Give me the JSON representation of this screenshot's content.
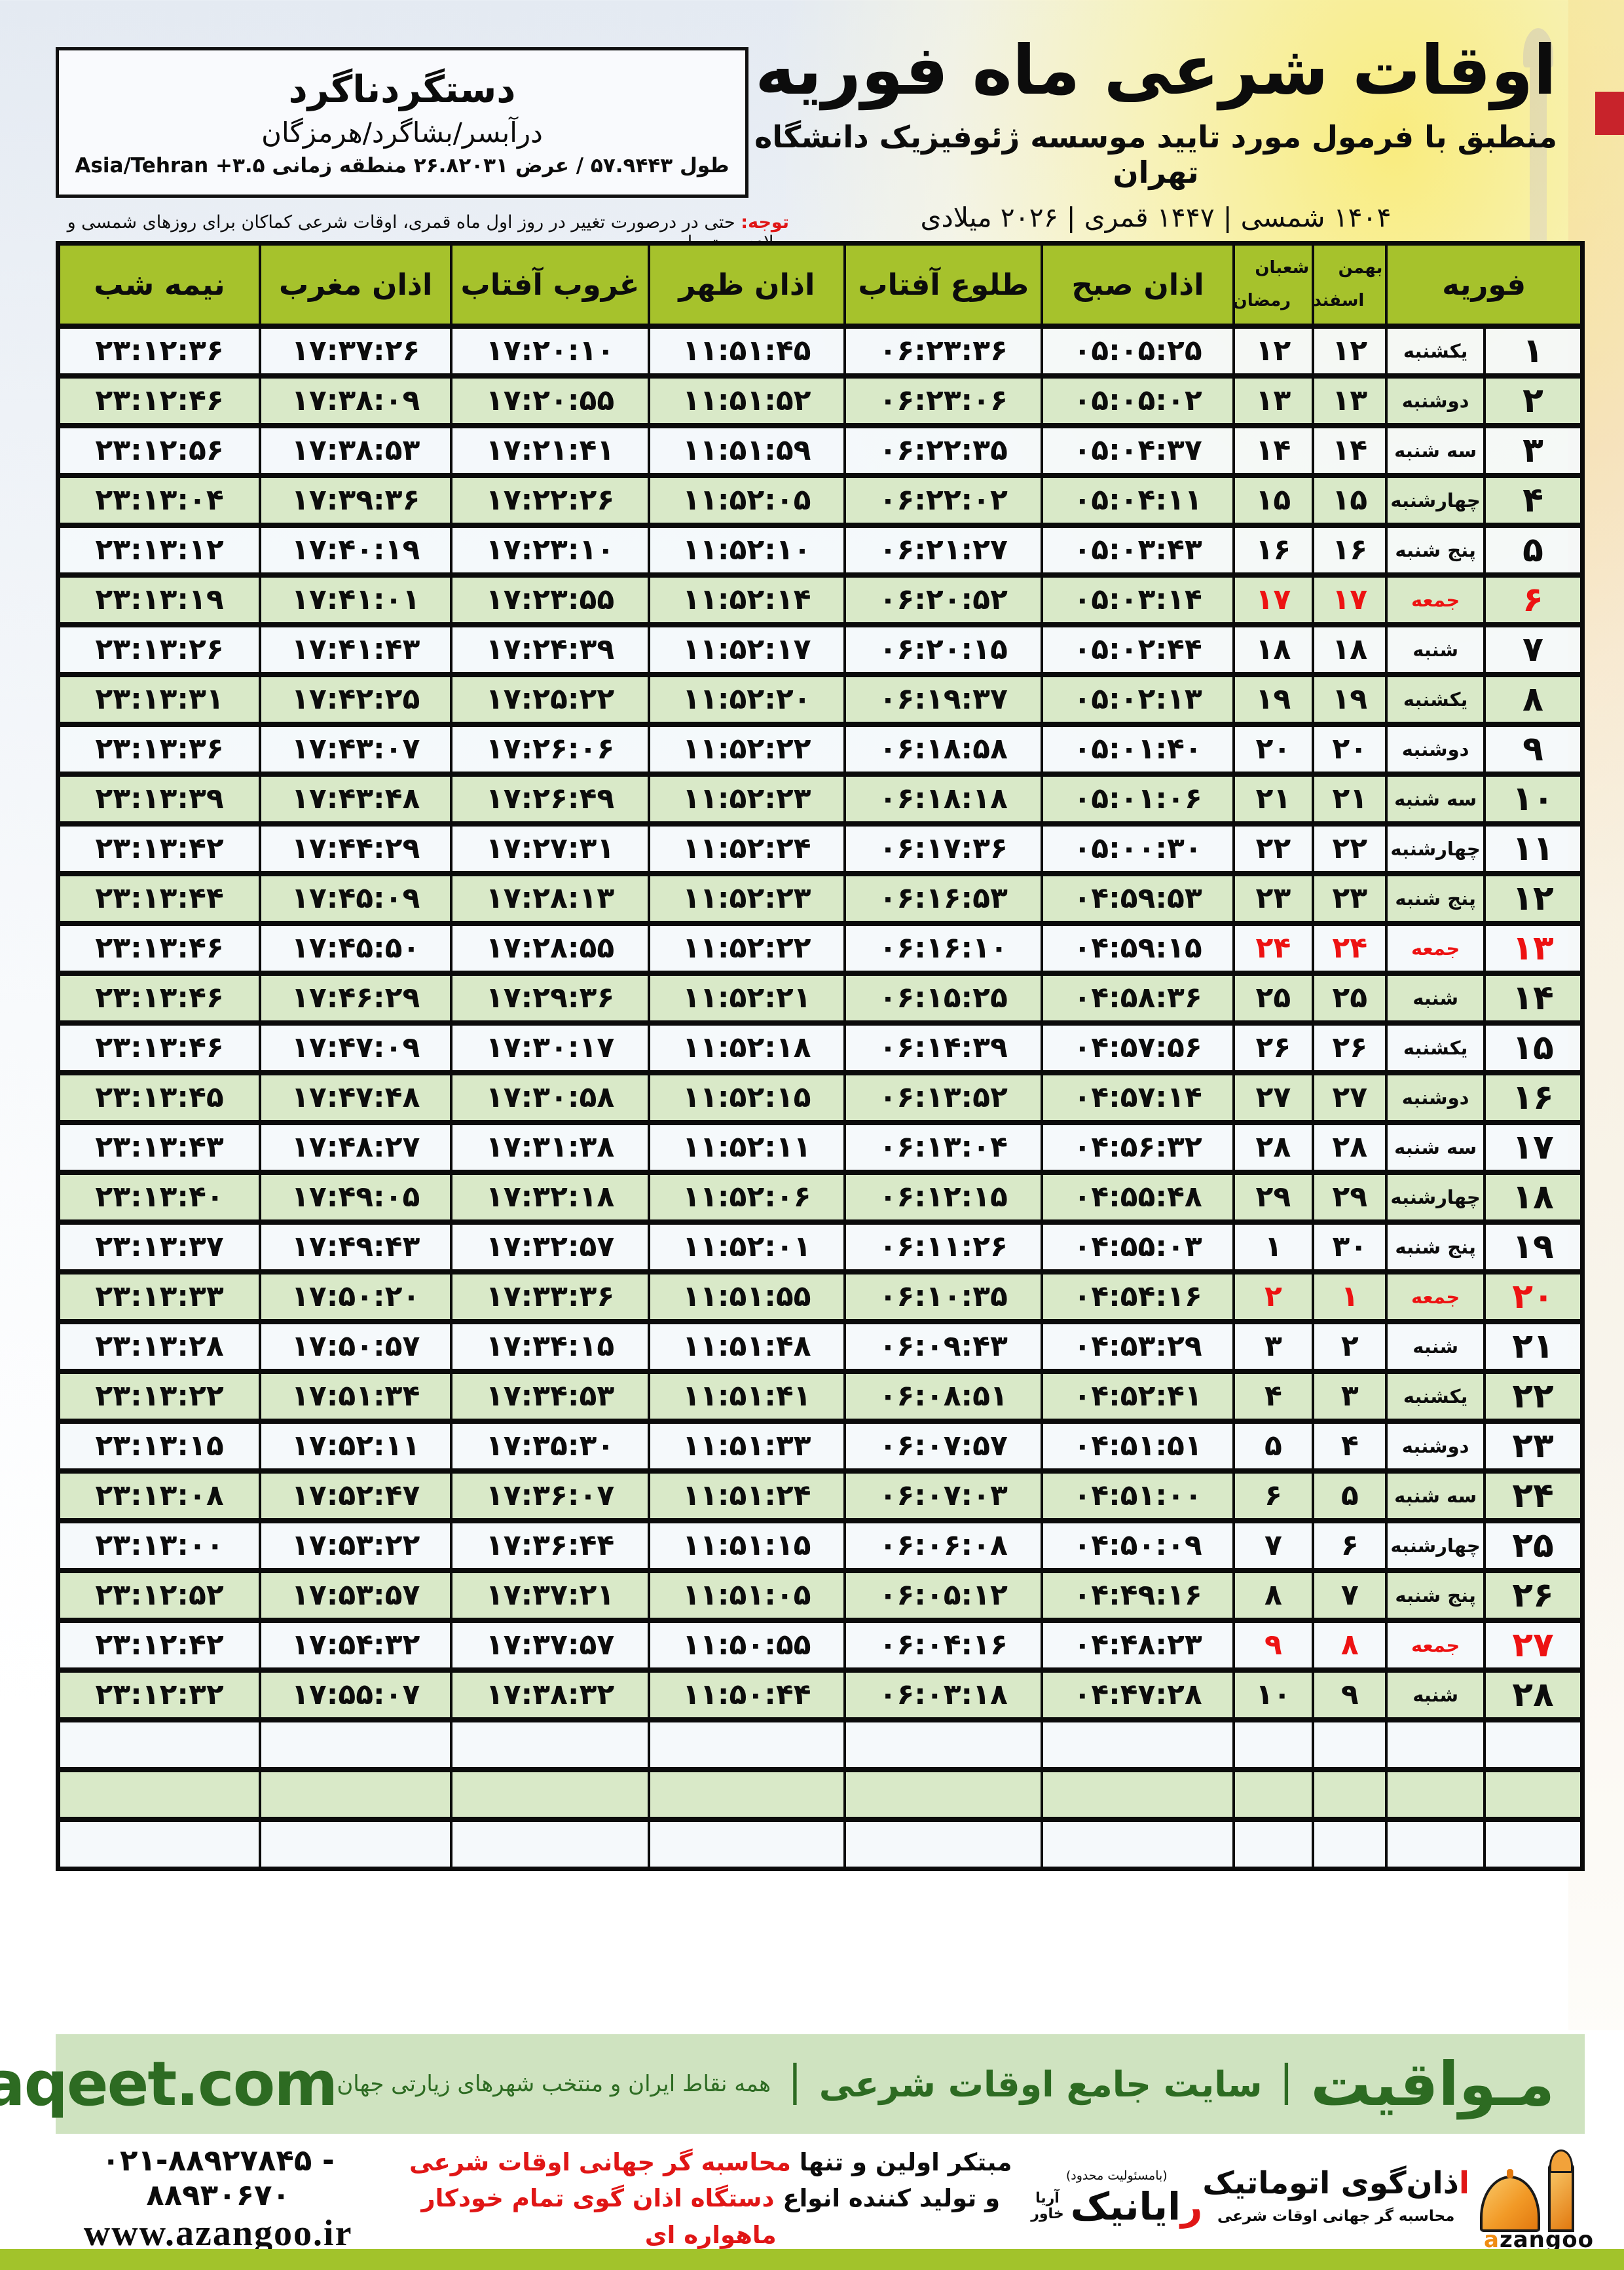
{
  "colors": {
    "header_green": "#a6c22c",
    "row_green": "#d9e9c8",
    "friday_red": "#ed1212",
    "note_red": "#e01616",
    "band_bg": "#cfe3c0",
    "band_text_green": "#2d6b22",
    "bottom_bar_green": "#a2c32b",
    "azangoo_orange": "#ef8c13",
    "red_chip": "#c8232b"
  },
  "header": {
    "title": "اوقات شرعی ماه فوریه",
    "subtitle": "منطبق با فرمول مورد تایید موسسه ژئوفیزیک دانشگاه تهران",
    "dateline": "۱۴۰۴ شمسی | ۱۴۴۷ قمری | ۲۰۲۶ میلادی"
  },
  "location": {
    "name": "دستگردناگرد",
    "region": "درآبسر/بشاگرد/هرمزگان",
    "coords": "طول ۵۷.۹۴۴۳ / عرض ۲۶.۸۲۰۳۱ منطقه زمانی ۳.۵+ Asia/Tehran"
  },
  "note": {
    "label": "توجه:",
    "text": " حتی در درصورت تغییر در روز اول ماه قمری، اوقات شرعی کماکان برای روزهای شمسی و میلادی معتبر است."
  },
  "table": {
    "headers": {
      "february": "فوریه",
      "bahman": "بهمن",
      "esfand": "اسفند",
      "shaban": "شعبان",
      "ramadan": "رمضان",
      "sobh": "اذان صبح",
      "tolu": "طلوع آفتاب",
      "zohr": "اذان ظهر",
      "ghorub": "غروب آفتاب",
      "maghreb": "اذان مغرب",
      "nimeshab": "نیمه شب"
    },
    "column_order": [
      "day",
      "weekday",
      "esfand",
      "ramadan",
      "sobh",
      "tolu",
      "zohr",
      "ghorub",
      "maghreb",
      "nimeshab"
    ],
    "empty_rows": 3,
    "rows": [
      {
        "day": "۱",
        "weekday": "یکشنبه",
        "esfand": "۱۲",
        "ramadan": "۱۲",
        "sobh": "۰۵:۰۵:۲۵",
        "tolu": "۰۶:۲۳:۳۶",
        "zohr": "۱۱:۵۱:۴۵",
        "ghorub": "۱۷:۲۰:۱۰",
        "maghreb": "۱۷:۳۷:۲۶",
        "nimeshab": "۲۳:۱۲:۳۶",
        "friday": false
      },
      {
        "day": "۲",
        "weekday": "دوشنبه",
        "esfand": "۱۳",
        "ramadan": "۱۳",
        "sobh": "۰۵:۰۵:۰۲",
        "tolu": "۰۶:۲۳:۰۶",
        "zohr": "۱۱:۵۱:۵۲",
        "ghorub": "۱۷:۲۰:۵۵",
        "maghreb": "۱۷:۳۸:۰۹",
        "nimeshab": "۲۳:۱۲:۴۶",
        "friday": false
      },
      {
        "day": "۳",
        "weekday": "سه شنبه",
        "esfand": "۱۴",
        "ramadan": "۱۴",
        "sobh": "۰۵:۰۴:۳۷",
        "tolu": "۰۶:۲۲:۳۵",
        "zohr": "۱۱:۵۱:۵۹",
        "ghorub": "۱۷:۲۱:۴۱",
        "maghreb": "۱۷:۳۸:۵۳",
        "nimeshab": "۲۳:۱۲:۵۶",
        "friday": false
      },
      {
        "day": "۴",
        "weekday": "چهارشنبه",
        "esfand": "۱۵",
        "ramadan": "۱۵",
        "sobh": "۰۵:۰۴:۱۱",
        "tolu": "۰۶:۲۲:۰۲",
        "zohr": "۱۱:۵۲:۰۵",
        "ghorub": "۱۷:۲۲:۲۶",
        "maghreb": "۱۷:۳۹:۳۶",
        "nimeshab": "۲۳:۱۳:۰۴",
        "friday": false
      },
      {
        "day": "۵",
        "weekday": "پنج شنبه",
        "esfand": "۱۶",
        "ramadan": "۱۶",
        "sobh": "۰۵:۰۳:۴۳",
        "tolu": "۰۶:۲۱:۲۷",
        "zohr": "۱۱:۵۲:۱۰",
        "ghorub": "۱۷:۲۳:۱۰",
        "maghreb": "۱۷:۴۰:۱۹",
        "nimeshab": "۲۳:۱۳:۱۲",
        "friday": false
      },
      {
        "day": "۶",
        "weekday": "جمعه",
        "esfand": "۱۷",
        "ramadan": "۱۷",
        "sobh": "۰۵:۰۳:۱۴",
        "tolu": "۰۶:۲۰:۵۲",
        "zohr": "۱۱:۵۲:۱۴",
        "ghorub": "۱۷:۲۳:۵۵",
        "maghreb": "۱۷:۴۱:۰۱",
        "nimeshab": "۲۳:۱۳:۱۹",
        "friday": true
      },
      {
        "day": "۷",
        "weekday": "شنبه",
        "esfand": "۱۸",
        "ramadan": "۱۸",
        "sobh": "۰۵:۰۲:۴۴",
        "tolu": "۰۶:۲۰:۱۵",
        "zohr": "۱۱:۵۲:۱۷",
        "ghorub": "۱۷:۲۴:۳۹",
        "maghreb": "۱۷:۴۱:۴۳",
        "nimeshab": "۲۳:۱۳:۲۶",
        "friday": false
      },
      {
        "day": "۸",
        "weekday": "یکشنبه",
        "esfand": "۱۹",
        "ramadan": "۱۹",
        "sobh": "۰۵:۰۲:۱۳",
        "tolu": "۰۶:۱۹:۳۷",
        "zohr": "۱۱:۵۲:۲۰",
        "ghorub": "۱۷:۲۵:۲۲",
        "maghreb": "۱۷:۴۲:۲۵",
        "nimeshab": "۲۳:۱۳:۳۱",
        "friday": false
      },
      {
        "day": "۹",
        "weekday": "دوشنبه",
        "esfand": "۲۰",
        "ramadan": "۲۰",
        "sobh": "۰۵:۰۱:۴۰",
        "tolu": "۰۶:۱۸:۵۸",
        "zohr": "۱۱:۵۲:۲۲",
        "ghorub": "۱۷:۲۶:۰۶",
        "maghreb": "۱۷:۴۳:۰۷",
        "nimeshab": "۲۳:۱۳:۳۶",
        "friday": false
      },
      {
        "day": "۱۰",
        "weekday": "سه شنبه",
        "esfand": "۲۱",
        "ramadan": "۲۱",
        "sobh": "۰۵:۰۱:۰۶",
        "tolu": "۰۶:۱۸:۱۸",
        "zohr": "۱۱:۵۲:۲۳",
        "ghorub": "۱۷:۲۶:۴۹",
        "maghreb": "۱۷:۴۳:۴۸",
        "nimeshab": "۲۳:۱۳:۳۹",
        "friday": false
      },
      {
        "day": "۱۱",
        "weekday": "چهارشنبه",
        "esfand": "۲۲",
        "ramadan": "۲۲",
        "sobh": "۰۵:۰۰:۳۰",
        "tolu": "۰۶:۱۷:۳۶",
        "zohr": "۱۱:۵۲:۲۴",
        "ghorub": "۱۷:۲۷:۳۱",
        "maghreb": "۱۷:۴۴:۲۹",
        "nimeshab": "۲۳:۱۳:۴۲",
        "friday": false
      },
      {
        "day": "۱۲",
        "weekday": "پنج شنبه",
        "esfand": "۲۳",
        "ramadan": "۲۳",
        "sobh": "۰۴:۵۹:۵۳",
        "tolu": "۰۶:۱۶:۵۳",
        "zohr": "۱۱:۵۲:۲۳",
        "ghorub": "۱۷:۲۸:۱۳",
        "maghreb": "۱۷:۴۵:۰۹",
        "nimeshab": "۲۳:۱۳:۴۴",
        "friday": false
      },
      {
        "day": "۱۳",
        "weekday": "جمعه",
        "esfand": "۲۴",
        "ramadan": "۲۴",
        "sobh": "۰۴:۵۹:۱۵",
        "tolu": "۰۶:۱۶:۱۰",
        "zohr": "۱۱:۵۲:۲۲",
        "ghorub": "۱۷:۲۸:۵۵",
        "maghreb": "۱۷:۴۵:۵۰",
        "nimeshab": "۲۳:۱۳:۴۶",
        "friday": true
      },
      {
        "day": "۱۴",
        "weekday": "شنبه",
        "esfand": "۲۵",
        "ramadan": "۲۵",
        "sobh": "۰۴:۵۸:۳۶",
        "tolu": "۰۶:۱۵:۲۵",
        "zohr": "۱۱:۵۲:۲۱",
        "ghorub": "۱۷:۲۹:۳۶",
        "maghreb": "۱۷:۴۶:۲۹",
        "nimeshab": "۲۳:۱۳:۴۶",
        "friday": false
      },
      {
        "day": "۱۵",
        "weekday": "یکشنبه",
        "esfand": "۲۶",
        "ramadan": "۲۶",
        "sobh": "۰۴:۵۷:۵۶",
        "tolu": "۰۶:۱۴:۳۹",
        "zohr": "۱۱:۵۲:۱۸",
        "ghorub": "۱۷:۳۰:۱۷",
        "maghreb": "۱۷:۴۷:۰۹",
        "nimeshab": "۲۳:۱۳:۴۶",
        "friday": false
      },
      {
        "day": "۱۶",
        "weekday": "دوشنبه",
        "esfand": "۲۷",
        "ramadan": "۲۷",
        "sobh": "۰۴:۵۷:۱۴",
        "tolu": "۰۶:۱۳:۵۲",
        "zohr": "۱۱:۵۲:۱۵",
        "ghorub": "۱۷:۳۰:۵۸",
        "maghreb": "۱۷:۴۷:۴۸",
        "nimeshab": "۲۳:۱۳:۴۵",
        "friday": false
      },
      {
        "day": "۱۷",
        "weekday": "سه شنبه",
        "esfand": "۲۸",
        "ramadan": "۲۸",
        "sobh": "۰۴:۵۶:۳۲",
        "tolu": "۰۶:۱۳:۰۴",
        "zohr": "۱۱:۵۲:۱۱",
        "ghorub": "۱۷:۳۱:۳۸",
        "maghreb": "۱۷:۴۸:۲۷",
        "nimeshab": "۲۳:۱۳:۴۳",
        "friday": false
      },
      {
        "day": "۱۸",
        "weekday": "چهارشنبه",
        "esfand": "۲۹",
        "ramadan": "۲۹",
        "sobh": "۰۴:۵۵:۴۸",
        "tolu": "۰۶:۱۲:۱۵",
        "zohr": "۱۱:۵۲:۰۶",
        "ghorub": "۱۷:۳۲:۱۸",
        "maghreb": "۱۷:۴۹:۰۵",
        "nimeshab": "۲۳:۱۳:۴۰",
        "friday": false
      },
      {
        "day": "۱۹",
        "weekday": "پنج شنبه",
        "esfand": "۳۰",
        "ramadan": "۱",
        "sobh": "۰۴:۵۵:۰۳",
        "tolu": "۰۶:۱۱:۲۶",
        "zohr": "۱۱:۵۲:۰۱",
        "ghorub": "۱۷:۳۲:۵۷",
        "maghreb": "۱۷:۴۹:۴۳",
        "nimeshab": "۲۳:۱۳:۳۷",
        "friday": false
      },
      {
        "day": "۲۰",
        "weekday": "جمعه",
        "esfand": "۱",
        "ramadan": "۲",
        "sobh": "۰۴:۵۴:۱۶",
        "tolu": "۰۶:۱۰:۳۵",
        "zohr": "۱۱:۵۱:۵۵",
        "ghorub": "۱۷:۳۳:۳۶",
        "maghreb": "۱۷:۵۰:۲۰",
        "nimeshab": "۲۳:۱۳:۳۳",
        "friday": true
      },
      {
        "day": "۲۱",
        "weekday": "شنبه",
        "esfand": "۲",
        "ramadan": "۳",
        "sobh": "۰۴:۵۳:۲۹",
        "tolu": "۰۶:۰۹:۴۳",
        "zohr": "۱۱:۵۱:۴۸",
        "ghorub": "۱۷:۳۴:۱۵",
        "maghreb": "۱۷:۵۰:۵۷",
        "nimeshab": "۲۳:۱۳:۲۸",
        "friday": false
      },
      {
        "day": "۲۲",
        "weekday": "یکشنبه",
        "esfand": "۳",
        "ramadan": "۴",
        "sobh": "۰۴:۵۲:۴۱",
        "tolu": "۰۶:۰۸:۵۱",
        "zohr": "۱۱:۵۱:۴۱",
        "ghorub": "۱۷:۳۴:۵۳",
        "maghreb": "۱۷:۵۱:۳۴",
        "nimeshab": "۲۳:۱۳:۲۲",
        "friday": false
      },
      {
        "day": "۲۳",
        "weekday": "دوشنبه",
        "esfand": "۴",
        "ramadan": "۵",
        "sobh": "۰۴:۵۱:۵۱",
        "tolu": "۰۶:۰۷:۵۷",
        "zohr": "۱۱:۵۱:۳۳",
        "ghorub": "۱۷:۳۵:۳۰",
        "maghreb": "۱۷:۵۲:۱۱",
        "nimeshab": "۲۳:۱۳:۱۵",
        "friday": false
      },
      {
        "day": "۲۴",
        "weekday": "سه شنبه",
        "esfand": "۵",
        "ramadan": "۶",
        "sobh": "۰۴:۵۱:۰۰",
        "tolu": "۰۶:۰۷:۰۳",
        "zohr": "۱۱:۵۱:۲۴",
        "ghorub": "۱۷:۳۶:۰۷",
        "maghreb": "۱۷:۵۲:۴۷",
        "nimeshab": "۲۳:۱۳:۰۸",
        "friday": false
      },
      {
        "day": "۲۵",
        "weekday": "چهارشنبه",
        "esfand": "۶",
        "ramadan": "۷",
        "sobh": "۰۴:۵۰:۰۹",
        "tolu": "۰۶:۰۶:۰۸",
        "zohr": "۱۱:۵۱:۱۵",
        "ghorub": "۱۷:۳۶:۴۴",
        "maghreb": "۱۷:۵۳:۲۲",
        "nimeshab": "۲۳:۱۳:۰۰",
        "friday": false
      },
      {
        "day": "۲۶",
        "weekday": "پنج شنبه",
        "esfand": "۷",
        "ramadan": "۸",
        "sobh": "۰۴:۴۹:۱۶",
        "tolu": "۰۶:۰۵:۱۲",
        "zohr": "۱۱:۵۱:۰۵",
        "ghorub": "۱۷:۳۷:۲۱",
        "maghreb": "۱۷:۵۳:۵۷",
        "nimeshab": "۲۳:۱۲:۵۲",
        "friday": false
      },
      {
        "day": "۲۷",
        "weekday": "جمعه",
        "esfand": "۸",
        "ramadan": "۹",
        "sobh": "۰۴:۴۸:۲۳",
        "tolu": "۰۶:۰۴:۱۶",
        "zohr": "۱۱:۵۰:۵۵",
        "ghorub": "۱۷:۳۷:۵۷",
        "maghreb": "۱۷:۵۴:۳۲",
        "nimeshab": "۲۳:۱۲:۴۲",
        "friday": true
      },
      {
        "day": "۲۸",
        "weekday": "شنبه",
        "esfand": "۹",
        "ramadan": "۱۰",
        "sobh": "۰۴:۴۷:۲۸",
        "tolu": "۰۶:۰۳:۱۸",
        "zohr": "۱۱:۵۰:۴۴",
        "ghorub": "۱۷:۳۸:۳۲",
        "maghreb": "۱۷:۵۵:۰۷",
        "nimeshab": "۲۳:۱۲:۳۲",
        "friday": false
      }
    ]
  },
  "band": {
    "brand": "مـواقیت",
    "separator": "|",
    "site_desc": "سایت جامع اوقات شرعی",
    "coverage": "همه نقاط ایران و منتخب شهرهای زیارتی جهان",
    "domain": "mavaqeet.com"
  },
  "footer": {
    "phone": "۰۲۱-۸۸۹۲۷۸۴۵ - ۸۸۹۳۰۶۷۰",
    "website": "www.azangoo.ir",
    "promo_line1_black": "مبتکر اولین و تنها ",
    "promo_line1_red": "محاسبه گر جهانی اوقات شرعی",
    "promo_line2_black": "و تولید کننده انواع ",
    "promo_line2_red": "دستگاه اذان گوی تمام خودکار ماهواره ای",
    "rayanik": {
      "liability": "(بامسئولیت محدود)",
      "name_first": "ر",
      "name_rest": "ایانیک",
      "sub_top": "آریا",
      "sub_bottom": "خاور"
    },
    "azangoo": {
      "fa_first": "ا",
      "fa_rest": "ذان‌گوی اتوماتیک",
      "tagline": "محاسبه گر جهانی اوقات شرعی",
      "latin_a": "a",
      "latin_rest": "zangoo"
    }
  }
}
